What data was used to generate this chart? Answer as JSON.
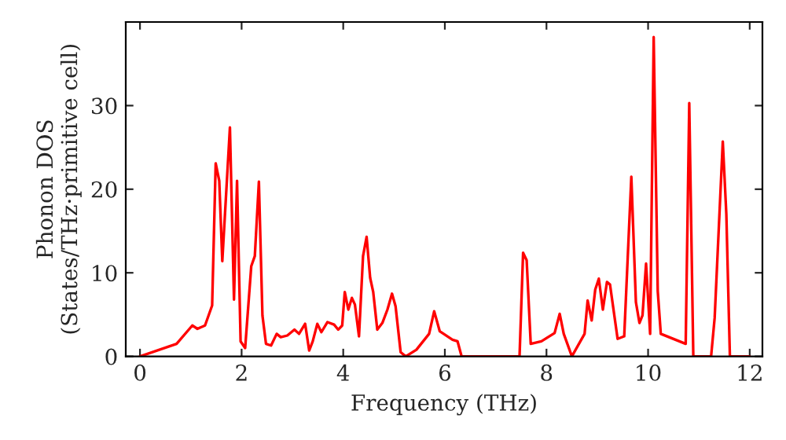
{
  "chart_data": {
    "type": "line",
    "xlabel": "Frequency (THz)",
    "ylabel": "Phonon DOS\n(States/THz·primitive cell)",
    "x": [
      0,
      0.72,
      1.03,
      1.13,
      1.28,
      1.42,
      1.49,
      1.56,
      1.62,
      1.77,
      1.85,
      1.91,
      1.98,
      2.07,
      2.19,
      2.26,
      2.34,
      2.41,
      2.48,
      2.58,
      2.69,
      2.77,
      2.9,
      3.04,
      3.13,
      3.25,
      3.33,
      3.4,
      3.49,
      3.57,
      3.69,
      3.82,
      3.9,
      3.98,
      4.03,
      4.1,
      4.17,
      4.23,
      4.31,
      4.39,
      4.46,
      4.53,
      4.59,
      4.67,
      4.77,
      4.87,
      4.96,
      5.03,
      5.13,
      5.23,
      5.44,
      5.69,
      5.79,
      5.9,
      6.15,
      6.25,
      6.33,
      7.47,
      7.54,
      7.61,
      7.69,
      7.9,
      8.16,
      8.26,
      8.34,
      8.5,
      8.75,
      8.81,
      8.89,
      8.96,
      9.03,
      9.11,
      9.19,
      9.25,
      9.4,
      9.53,
      9.67,
      9.76,
      9.83,
      9.89,
      9.96,
      10.04,
      10.11,
      10.19,
      10.25,
      10.74,
      10.81,
      10.89,
      11.24,
      11.31,
      11.47,
      11.54,
      11.61,
      12.0
    ],
    "series": [
      {
        "color": "#ff0000",
        "values": [
          0,
          1.5,
          3.7,
          3.3,
          3.7,
          6.1,
          23.1,
          21,
          11.4,
          27.4,
          6.8,
          21,
          1.8,
          1,
          10.8,
          12,
          20.9,
          4.9,
          1.5,
          1.3,
          2.7,
          2.3,
          2.5,
          3.2,
          2.7,
          3.9,
          0.7,
          1.8,
          3.9,
          2.9,
          4.1,
          3.8,
          3.2,
          3.7,
          7.7,
          5.6,
          7.0,
          6.2,
          2.4,
          12,
          14.3,
          9.4,
          7.7,
          3.2,
          4.0,
          5.6,
          7.5,
          6.0,
          0.5,
          0,
          0.8,
          2.7,
          5.4,
          3.0,
          2.0,
          1.8,
          0,
          0,
          12.4,
          11.5,
          1.5,
          1.8,
          2.8,
          5.1,
          2.7,
          0,
          2.7,
          6.7,
          4.3,
          8.0,
          9.3,
          5.6,
          8.9,
          8.6,
          2.1,
          2.4,
          21.5,
          6.5,
          4.0,
          4.9,
          11.1,
          2.7,
          38.2,
          7.8,
          2.7,
          1.5,
          30.3,
          0,
          0,
          4.6,
          25.7,
          17,
          0,
          0
        ]
      }
    ],
    "xlim": [
      -0.28,
      12.25
    ],
    "ylim": [
      0,
      40
    ],
    "xticks": [
      0,
      2,
      4,
      6,
      8,
      10,
      12
    ],
    "yticks": [
      0,
      10,
      20,
      30
    ],
    "grid": false,
    "line_style": "solid",
    "marker": "none"
  }
}
